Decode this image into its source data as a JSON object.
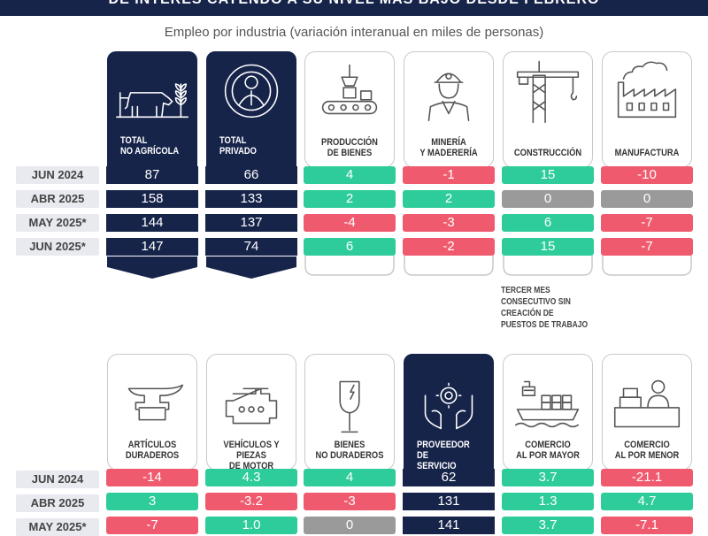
{
  "header": {
    "title": "DE INTERÉS CAYENDO A SU NIVEL MÁS BAJO DESDE FEBRERO",
    "subtitle": "Empleo por industria (variación interanual en miles de personas)"
  },
  "row_labels": [
    "JUN 2024",
    "ABR 2025",
    "MAY 2025*",
    "JUN 2025*"
  ],
  "row_labels_bottom": [
    "JUN 2024",
    "ABR 2025",
    "MAY 2025*"
  ],
  "top": [
    {
      "label": "TOTAL\nNO AGRÍCOLA",
      "icon": "cow-icon",
      "values": [
        "87",
        "158",
        "144",
        "147"
      ],
      "status": [
        "dark",
        "dark",
        "dark",
        "dark"
      ]
    },
    {
      "label": "TOTAL\nPRIVADO",
      "icon": "worker-gear-icon",
      "values": [
        "66",
        "133",
        "137",
        "74"
      ],
      "status": [
        "dark",
        "dark",
        "dark",
        "dark"
      ]
    },
    {
      "label": "PRODUCCIÓN\nDE BIENES",
      "icon": "conveyor-icon",
      "values": [
        "4",
        "2",
        "-4",
        "6"
      ],
      "status": [
        "pos",
        "pos",
        "neg",
        "pos"
      ]
    },
    {
      "label": "MINERÍA\nY MADERERÍA",
      "icon": "miner-icon",
      "values": [
        "-1",
        "2",
        "-3",
        "-2"
      ],
      "status": [
        "neg",
        "pos",
        "neg",
        "neg"
      ]
    },
    {
      "label": "CONSTRUCCIÓN",
      "icon": "crane-icon",
      "values": [
        "15",
        "0",
        "6",
        "15"
      ],
      "status": [
        "pos",
        "neutral",
        "pos",
        "pos"
      ]
    },
    {
      "label": "MANUFACTURA",
      "icon": "factory-icon",
      "values": [
        "-10",
        "0",
        "-7",
        "-7"
      ],
      "status": [
        "neg",
        "neutral",
        "neg",
        "neg"
      ]
    }
  ],
  "note": "TERCER MES CONSECUTIVO SIN CREACIÓN DE PUESTOS DE TRABAJO",
  "bottom": [
    {
      "label": "ARTÍCULOS\nDURADEROS",
      "icon": "anvil-icon",
      "values": [
        "-14",
        "3",
        "-7"
      ],
      "status": [
        "neg",
        "pos",
        "neg"
      ]
    },
    {
      "label": "VEHÍCULOS Y PIEZAS\nDE MOTOR",
      "icon": "engine-icon",
      "values": [
        "4.3",
        "-3.2",
        "1.0"
      ],
      "status": [
        "pos",
        "neg",
        "pos"
      ]
    },
    {
      "label": "BIENES\nNO DURADEROS",
      "icon": "glass-icon",
      "values": [
        "4",
        "-3",
        "0"
      ],
      "status": [
        "pos",
        "neg",
        "neutral"
      ]
    },
    {
      "label": "PROVEEDOR DE\nSERVICIO PRIVADO",
      "icon": "hands-gear-icon",
      "values": [
        "62",
        "131",
        "141"
      ],
      "status": [
        "dark",
        "dark",
        "dark"
      ]
    },
    {
      "label": "COMERCIO\nAL POR MAYOR",
      "icon": "ship-icon",
      "values": [
        "3.7",
        "1.3",
        "3.7"
      ],
      "status": [
        "pos",
        "pos",
        "pos"
      ]
    },
    {
      "label": "COMERCIO\nAL POR MENOR",
      "icon": "cashier-icon",
      "values": [
        "-21.1",
        "4.7",
        "-7.1"
      ],
      "status": [
        "neg",
        "pos",
        "neg"
      ]
    }
  ]
}
